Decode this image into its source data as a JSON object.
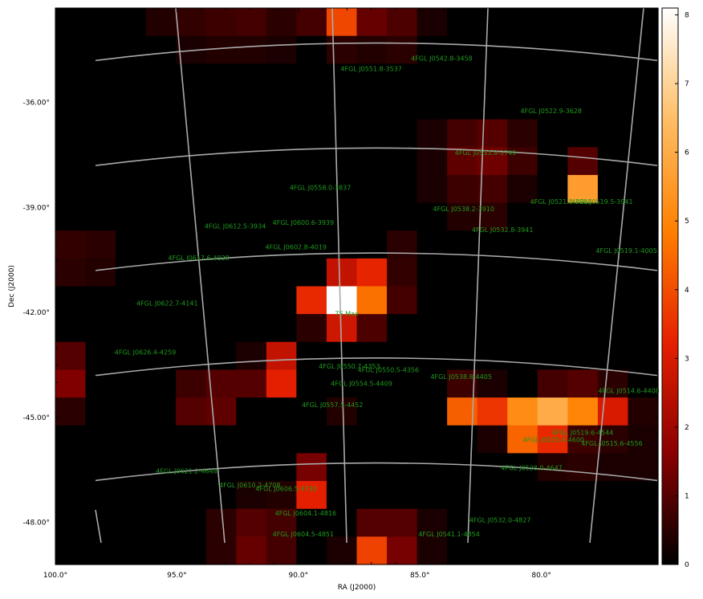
{
  "chart_data": {
    "type": "heatmap",
    "xlabel": "RA (J2000)",
    "ylabel": "Dec (J2000)",
    "xlim": [
      100.0,
      75.2
    ],
    "ylim": [
      -49.2,
      -33.3
    ],
    "x_ticks": [
      100,
      95,
      90,
      85,
      80
    ],
    "x_tick_labels": [
      "100.0°",
      "95.0°",
      "90.0°",
      "85.0°",
      "80.0°"
    ],
    "y_ticks": [
      -36,
      -39,
      -42,
      -45,
      -48
    ],
    "y_tick_labels": [
      "-36.00°",
      "-39.00°",
      "-42.00°",
      "-45.00°",
      "-48.00°"
    ],
    "colorbar": {
      "min": 0,
      "max": 8.1,
      "ticks": [
        0,
        1,
        2,
        3,
        4,
        5,
        6,
        7,
        8
      ],
      "tick_labels": [
        "0",
        "1",
        "2",
        "3",
        "4",
        "5",
        "6",
        "7",
        "8"
      ],
      "colormap": [
        "#000000",
        "#8a0000",
        "#e62000",
        "#ff8000",
        "#ffbe66",
        "#ffffff"
      ]
    },
    "grid": true,
    "grid_color": "#aaaaaa",
    "pixels": {
      "cols": 20,
      "rows": 20,
      "values": [
        [
          0,
          0,
          0,
          0.4,
          0.6,
          0.7,
          0.8,
          0.5,
          0.8,
          3.9,
          1.2,
          0.9,
          0.3,
          0,
          0,
          0,
          0,
          0,
          0,
          0
        ],
        [
          0,
          0,
          0,
          0,
          0.3,
          0.4,
          0.4,
          0.3,
          0,
          0.5,
          0.4,
          0.5,
          0,
          0,
          0,
          0,
          0,
          0,
          0,
          0
        ],
        [
          0,
          0,
          0,
          0,
          0,
          0,
          0,
          0,
          0,
          0,
          0,
          0,
          0,
          0,
          0,
          0,
          0,
          0,
          0,
          0
        ],
        [
          0,
          0,
          0,
          0,
          0,
          0,
          0,
          0,
          0,
          0,
          0,
          0,
          0,
          0,
          0,
          0,
          0,
          0,
          0,
          0
        ],
        [
          0,
          0,
          0,
          0,
          0,
          0,
          0,
          0,
          0,
          0,
          0,
          0,
          0.3,
          0.8,
          1.0,
          0.5,
          0,
          0,
          0,
          0
        ],
        [
          0,
          0,
          0,
          0,
          0,
          0,
          0,
          0,
          0,
          0,
          0,
          0,
          0.3,
          1.1,
          1.3,
          0.7,
          0,
          1.0,
          0,
          0
        ],
        [
          0,
          0,
          0,
          0,
          0,
          0,
          0,
          0,
          0,
          0,
          0,
          0,
          0.3,
          0.7,
          0.8,
          0.3,
          0,
          5.6,
          0,
          0
        ],
        [
          0,
          0,
          0,
          0,
          0,
          0,
          0,
          0,
          0,
          0,
          0,
          0,
          0,
          0.4,
          0.5,
          0,
          0,
          0,
          0,
          0
        ],
        [
          0.6,
          0.5,
          0,
          0,
          0,
          0,
          0,
          0,
          0,
          0,
          0,
          0.5,
          0,
          0,
          0,
          0,
          0,
          0,
          0,
          0
        ],
        [
          0.5,
          0.4,
          0,
          0,
          0,
          0,
          0,
          0,
          0,
          2.6,
          3.3,
          0.6,
          0,
          0,
          0,
          0,
          0,
          0,
          0,
          0
        ],
        [
          0,
          0,
          0,
          0,
          0,
          0,
          0,
          0,
          3.4,
          8.1,
          4.6,
          0.8,
          0,
          0,
          0,
          0,
          0,
          0,
          0,
          0
        ],
        [
          0,
          0,
          0,
          0,
          0,
          0,
          0,
          0,
          0.5,
          2.8,
          0.9,
          0,
          0,
          0,
          0,
          0,
          0,
          0,
          0,
          0
        ],
        [
          1.0,
          0,
          0,
          0,
          0,
          0,
          0.3,
          2.6,
          0,
          0,
          0,
          0,
          0,
          0,
          0,
          0,
          0,
          0,
          0,
          0
        ],
        [
          1.5,
          0,
          0,
          0,
          0.7,
          1.0,
          1.0,
          3.2,
          0,
          0,
          0,
          0,
          0,
          0.7,
          0.3,
          0,
          0.8,
          1.0,
          0.5,
          0
        ],
        [
          0.5,
          0,
          0,
          0,
          1.0,
          1.1,
          0,
          0,
          0,
          0.4,
          0,
          0,
          0,
          4.3,
          3.6,
          5.2,
          6.0,
          5.0,
          3.0,
          0.4
        ],
        [
          0,
          0,
          0,
          0,
          0,
          0,
          0,
          0,
          0,
          0,
          0,
          0,
          0,
          0,
          0.3,
          4.4,
          3.4,
          0.7,
          0.5,
          0.3
        ],
        [
          0,
          0,
          0,
          0,
          0,
          0,
          0,
          0,
          1.4,
          0,
          0,
          0,
          0,
          0,
          0,
          0,
          0.4,
          0.5,
          0.3,
          0.3
        ],
        [
          0,
          0,
          0,
          0,
          0,
          0,
          0.3,
          0.4,
          3.2,
          0,
          0,
          0,
          0,
          0,
          0,
          0,
          0,
          0,
          0,
          0
        ],
        [
          0,
          0,
          0,
          0,
          0,
          0.5,
          1.0,
          0.8,
          0,
          0,
          1.0,
          1.0,
          0.3,
          0,
          0,
          0,
          0,
          0,
          0,
          0
        ],
        [
          0,
          0,
          0,
          0,
          0,
          0.5,
          1.2,
          0.8,
          0,
          0.3,
          3.8,
          1.4,
          0.3,
          0,
          0,
          0,
          0,
          0,
          0,
          0
        ]
      ]
    },
    "annotations": [
      {
        "label": "4FGL J0542.8-3458",
        "ra": 84.1,
        "dec": -34.8
      },
      {
        "label": "4FGL J0551.8-3537",
        "ra": 87.0,
        "dec": -35.1
      },
      {
        "label": "4FGL J0522.9-3628",
        "ra": 79.6,
        "dec": -36.3
      },
      {
        "label": "4FGL J0533.8-3749",
        "ra": 82.3,
        "dec": -37.5
      },
      {
        "label": "4FGL J0558.0-3837",
        "ra": 89.1,
        "dec": -38.5
      },
      {
        "label": "4FGL J0538.2-3910",
        "ra": 83.2,
        "dec": -39.1
      },
      {
        "label": "4FGL J0521.8-3908",
        "ra": 79.2,
        "dec": -38.9
      },
      {
        "label": "4FGL J0519.5-3941",
        "ra": 77.5,
        "dec": -38.9
      },
      {
        "label": "4FGL J0612.5-3934",
        "ra": 92.6,
        "dec": -39.6
      },
      {
        "label": "4FGL J0600.6-3939",
        "ra": 89.8,
        "dec": -39.5
      },
      {
        "label": "4FGL J0532.8-3941",
        "ra": 81.6,
        "dec": -39.7
      },
      {
        "label": "4FGL J0602.8-4019",
        "ra": 90.1,
        "dec": -40.2
      },
      {
        "label": "4FGL J0617.6-4028",
        "ra": 94.1,
        "dec": -40.5
      },
      {
        "label": "4FGL J0519.1-4005",
        "ra": 76.5,
        "dec": -40.3
      },
      {
        "label": "4FGL J0622.7-4141",
        "ra": 95.4,
        "dec": -41.8
      },
      {
        "label": "TS Max",
        "ra": 88.0,
        "dec": -42.1
      },
      {
        "label": "4FGL J0626.4-4259",
        "ra": 96.3,
        "dec": -43.2
      },
      {
        "label": "4FGL J0550.7-4353",
        "ra": 87.9,
        "dec": -43.6
      },
      {
        "label": "4FGL J0550.5-4356",
        "ra": 86.3,
        "dec": -43.7
      },
      {
        "label": "4FGL J0538.8-4405",
        "ra": 83.3,
        "dec": -43.9
      },
      {
        "label": "4FGL J0554.5-4409",
        "ra": 87.4,
        "dec": -44.1
      },
      {
        "label": "4FGL J0514.6-4408",
        "ra": 76.4,
        "dec": -44.3
      },
      {
        "label": "4FGL J0557.5-4452",
        "ra": 88.6,
        "dec": -44.7
      },
      {
        "label": "4FGL J0519.6-4544",
        "ra": 78.3,
        "dec": -45.5
      },
      {
        "label": "4FGL J0525.4-4600",
        "ra": 79.5,
        "dec": -45.7
      },
      {
        "label": "4FGL J0515.6-4556",
        "ra": 77.1,
        "dec": -45.8
      },
      {
        "label": "4FGL J0621.2-4648",
        "ra": 94.6,
        "dec": -46.6
      },
      {
        "label": "4FGL J0528.0-4647",
        "ra": 80.4,
        "dec": -46.5
      },
      {
        "label": "4FGL J0610.2-4708",
        "ra": 92.0,
        "dec": -47.0
      },
      {
        "label": "4FGL J0606.5-4730",
        "ra": 90.5,
        "dec": -47.1
      },
      {
        "label": "4FGL J0604.1-4816",
        "ra": 89.7,
        "dec": -47.8
      },
      {
        "label": "4FGL J0532.0-4827",
        "ra": 81.7,
        "dec": -48.0
      },
      {
        "label": "4FGL J0604.5-4851",
        "ra": 89.8,
        "dec": -48.4
      },
      {
        "label": "4FGL J0541.1-4854",
        "ra": 83.8,
        "dec": -48.4
      }
    ]
  }
}
